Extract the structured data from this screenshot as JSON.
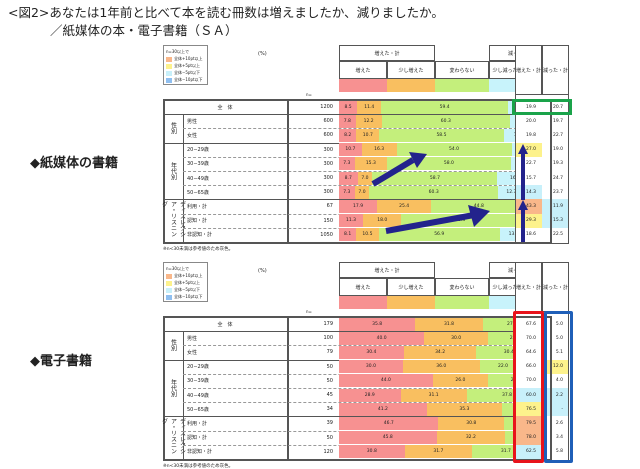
{
  "title": {
    "line1": "<図2>あなたは1年前と比べて本を読む冊数は増えましたか、減りましたか。",
    "line2": "／紙媒体の本・電子書籍（ＳＡ）"
  },
  "legend": {
    "heading": "n=30以上で",
    "items": [
      {
        "label": "全体+10pt以上",
        "color": "#f9b78a"
      },
      {
        "label": "全体+5pt以上",
        "color": "#fdf28c"
      },
      {
        "label": "全体−5pt以下",
        "color": "#c8f0fa"
      },
      {
        "label": "全体−10pt以下",
        "color": "#8fbff0"
      }
    ]
  },
  "headers": {
    "pct": "(%)",
    "n": "n=",
    "increased_total": "増えた・計",
    "decreased_total": "減った・計",
    "increased": "増えた",
    "slightly_increased": "少し増えた",
    "unchanged": "変わらない",
    "slightly_decreased": "少し減った",
    "decreased": "減った"
  },
  "colors": {
    "increased": "#f79191",
    "slightly_increased": "#f9bf60",
    "unchanged": "#c4ef7c",
    "slightly_decreased": "#c8f3fb",
    "decreased": "#92bff0",
    "highlight_green": "#1aa34a",
    "highlight_red": "#e8131b",
    "highlight_blue": "#1f5fb8",
    "arrow": "#23238c"
  },
  "groups": {
    "total": "全　体",
    "gender": "性別",
    "age": "年代別",
    "listening": "ディスレクシア・リスニング"
  },
  "note": "※n<30未満は参考値のため灰色。",
  "chart_data": [
    {
      "type": "bar",
      "title": "紙媒体の書籍",
      "stacked": true,
      "orientation": "horizontal",
      "categories": [
        "全体",
        "男性",
        "女性",
        "20〜29歳",
        "30〜39歳",
        "40〜49歳",
        "50〜65歳",
        "利用・計",
        "認知・計",
        "非認知・計"
      ],
      "n": [
        1200,
        600,
        600,
        300,
        300,
        300,
        300,
        67,
        150,
        1050
      ],
      "series": [
        {
          "name": "増えた",
          "values": [
            8.5,
            7.8,
            8.2,
            10.7,
            7.3,
            8.7,
            7.3,
            17.9,
            11.3,
            8.1
          ]
        },
        {
          "name": "少し増えた",
          "values": [
            11.4,
            12.2,
            10.7,
            16.3,
            15.3,
            7.0,
            7.0,
            25.4,
            18.0,
            10.5
          ]
        },
        {
          "name": "変わらない",
          "values": [
            59.4,
            60.3,
            58.5,
            54.0,
            58.0,
            58.7,
            60.3,
            44.8,
            55.3,
            56.9
          ]
        },
        {
          "name": "少し減った",
          "values": [
            12.5,
            10.8,
            14.2,
            10.7,
            10.7,
            16.5,
            12.7,
            6.0,
            8.7,
            13.0
          ]
        },
        {
          "name": "減った",
          "values": [
            8.2,
            8.8,
            8.5,
            8.3,
            8.7,
            8.7,
            11.0,
            6.0,
            6.7,
            8.5
          ]
        }
      ],
      "increased_total": [
        19.9,
        20.0,
        19.8,
        27.0,
        22.7,
        15.7,
        14.3,
        43.3,
        29.3,
        18.6
      ],
      "decreased_total": [
        20.7,
        19.7,
        22.7,
        19.0,
        19.3,
        24.7,
        23.7,
        11.9,
        15.3,
        22.5
      ],
      "increased_total_colors": [
        "",
        "",
        "",
        "#fdf28c",
        "",
        "",
        "#c8f0fa",
        "#f9b78a",
        "#fdf28c",
        ""
      ],
      "decreased_total_colors": [
        "",
        "",
        "",
        "",
        "",
        "",
        "",
        "#c8f0fa",
        "#c8f0fa",
        ""
      ],
      "xlim": [
        0,
        100
      ]
    },
    {
      "type": "bar",
      "title": "電子書籍",
      "stacked": true,
      "orientation": "horizontal",
      "categories": [
        "全体",
        "男性",
        "女性",
        "20〜29歳",
        "30〜39歳",
        "40〜49歳",
        "50〜65歳",
        "利用・計",
        "認知・計",
        "非認知・計"
      ],
      "n": [
        179,
        100,
        79,
        50,
        50,
        45,
        34,
        39,
        50,
        120
      ],
      "series": [
        {
          "name": "増えた",
          "values": [
            35.8,
            40.0,
            30.4,
            30.0,
            44.0,
            28.9,
            41.2,
            46.7,
            45.8,
            30.8
          ]
        },
        {
          "name": "少し増えた",
          "values": [
            31.8,
            30.0,
            34.2,
            36.0,
            26.0,
            31.1,
            35.3,
            30.8,
            32.2,
            31.7
          ]
        },
        {
          "name": "変わらない",
          "values": [
            27.4,
            25.0,
            30.4,
            22.0,
            26.0,
            37.8,
            20.5,
            17.9,
            16.9,
            31.7
          ]
        },
        {
          "name": "少し減った",
          "values": [
            1.7,
            5.0,
            1.3,
            6.0,
            0.0,
            0.0,
            0.0,
            0.0,
            1.7,
            2.5
          ]
        },
        {
          "name": "減った",
          "values": [
            3.4,
            0.0,
            3.8,
            6.0,
            4.0,
            2.2,
            0.0,
            2.6,
            3.4,
            3.3
          ]
        }
      ],
      "increased_total": [
        67.6,
        70.0,
        64.6,
        66.0,
        70.0,
        60.0,
        76.5,
        79.5,
        78.0,
        62.5
      ],
      "decreased_total": [
        5.0,
        5.0,
        5.1,
        12.0,
        4.0,
        2.2,
        "-",
        2.6,
        3.4,
        5.8
      ],
      "increased_total_colors": [
        "",
        "",
        "",
        "",
        "",
        "#c8f0fa",
        "#fdf28c",
        "#f9b78a",
        "#f9b78a",
        "#c8f0fa"
      ],
      "decreased_total_colors": [
        "",
        "",
        "",
        "#fdf28c",
        "",
        "#c8f0fa",
        "#c8f0fa",
        "",
        "",
        ""
      ],
      "xlim": [
        0,
        100
      ]
    }
  ],
  "sections": {
    "paper_label": "◆紙媒体の書籍",
    "ebook_label": "◆電子書籍"
  },
  "labels": {
    "rows": [
      "全　体",
      "男性",
      "女性",
      "20−29歳",
      "30−39歳",
      "40−49歳",
      "50−65歳",
      "利用・計",
      "認知・計",
      "非認知・計"
    ]
  }
}
